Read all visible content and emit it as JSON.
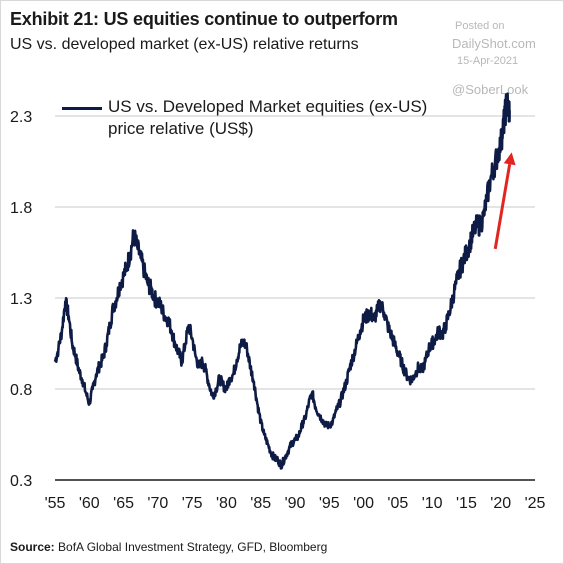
{
  "header": {
    "title": "Exhibit 21: US equities continue to outperform",
    "subtitle": "US vs. developed market (ex-US) relative returns"
  },
  "watermark": {
    "posted": "Posted on",
    "site": "DailyShot.com",
    "date": "15-Apr-2021",
    "handle": "@SoberLook"
  },
  "footer": {
    "source_label": "Source:",
    "source_text": "BofA Global Investment Strategy, GFD, Bloomberg"
  },
  "chart_data": {
    "type": "line",
    "series": [
      {
        "name": "US vs. Developed Market equities (ex-US) price relative (US$)",
        "color": "#0d1b45",
        "x": [
          1955,
          1955.5,
          1956,
          1956.5,
          1957,
          1957.5,
          1958,
          1958.5,
          1959,
          1959.5,
          1960,
          1960.5,
          1961,
          1961.5,
          1962,
          1962.5,
          1963,
          1963.5,
          1964,
          1964.5,
          1965,
          1965.5,
          1966,
          1966.5,
          1967,
          1967.5,
          1968,
          1968.5,
          1969,
          1969.5,
          1970,
          1970.5,
          1971,
          1971.5,
          1972,
          1972.5,
          1973,
          1973.5,
          1974,
          1974.5,
          1975,
          1975.5,
          1976,
          1976.5,
          1977,
          1977.5,
          1978,
          1978.5,
          1979,
          1979.5,
          1980,
          1980.5,
          1981,
          1981.5,
          1982,
          1982.5,
          1983,
          1983.5,
          1984,
          1984.5,
          1985,
          1985.5,
          1986,
          1986.5,
          1987,
          1987.5,
          1988,
          1988.5,
          1989,
          1989.5,
          1990,
          1990.5,
          1991,
          1991.5,
          1992,
          1992.5,
          1993,
          1993.5,
          1994,
          1994.5,
          1995,
          1995.5,
          1996,
          1996.5,
          1997,
          1997.5,
          1998,
          1998.5,
          1999,
          1999.5,
          2000,
          2000.5,
          2001,
          2001.5,
          2002,
          2002.5,
          2003,
          2003.5,
          2004,
          2004.5,
          2005,
          2005.5,
          2006,
          2006.5,
          2007,
          2007.5,
          2008,
          2008.5,
          2009,
          2009.5,
          2010,
          2010.5,
          2011,
          2011.5,
          2012,
          2012.5,
          2013,
          2013.5,
          2014,
          2014.5,
          2015,
          2015.5,
          2016,
          2016.5,
          2017,
          2017.5,
          2018,
          2018.5,
          2019,
          2019.5,
          2020,
          2020.3,
          2020.6,
          2020.9,
          2021.1,
          2021.3
        ],
        "values": [
          0.95,
          1.02,
          1.12,
          1.28,
          1.2,
          1.05,
          0.98,
          0.9,
          0.85,
          0.78,
          0.72,
          0.8,
          0.88,
          0.93,
          0.97,
          1.05,
          1.15,
          1.25,
          1.3,
          1.38,
          1.42,
          1.48,
          1.55,
          1.65,
          1.58,
          1.52,
          1.45,
          1.38,
          1.35,
          1.3,
          1.28,
          1.25,
          1.2,
          1.18,
          1.12,
          1.05,
          1.0,
          0.95,
          1.05,
          1.15,
          1.08,
          0.98,
          0.92,
          0.95,
          0.9,
          0.82,
          0.76,
          0.8,
          0.86,
          0.82,
          0.8,
          0.86,
          0.88,
          0.96,
          1.03,
          1.06,
          1.02,
          0.92,
          0.84,
          0.72,
          0.62,
          0.55,
          0.5,
          0.45,
          0.42,
          0.41,
          0.38,
          0.42,
          0.46,
          0.5,
          0.52,
          0.54,
          0.6,
          0.64,
          0.72,
          0.78,
          0.7,
          0.66,
          0.63,
          0.6,
          0.6,
          0.62,
          0.68,
          0.72,
          0.78,
          0.84,
          0.92,
          0.98,
          1.05,
          1.12,
          1.18,
          1.2,
          1.22,
          1.18,
          1.23,
          1.27,
          1.22,
          1.15,
          1.1,
          1.05,
          1.0,
          0.95,
          0.9,
          0.86,
          0.85,
          0.88,
          0.92,
          0.9,
          0.95,
          1.02,
          1.05,
          1.08,
          1.12,
          1.1,
          1.15,
          1.22,
          1.3,
          1.38,
          1.45,
          1.5,
          1.55,
          1.6,
          1.66,
          1.7,
          1.7,
          1.75,
          1.85,
          1.95,
          2.02,
          2.08,
          2.15,
          2.22,
          2.3,
          2.38,
          2.34,
          2.33
        ]
      }
    ],
    "xlim": [
      1955,
      2025
    ],
    "ylim": [
      0.3,
      2.3
    ],
    "x_ticks": [
      "'55",
      "'60",
      "'65",
      "'70",
      "'75",
      "'80",
      "'85",
      "'90",
      "'95",
      "'00",
      "'05",
      "'10",
      "'15",
      "'20",
      "'25"
    ],
    "x_tick_values": [
      1955,
      1960,
      1965,
      1970,
      1975,
      1980,
      1985,
      1990,
      1995,
      2000,
      2005,
      2010,
      2015,
      2020,
      2025
    ],
    "y_ticks": [
      "0.3",
      "0.8",
      "1.3",
      "1.8",
      "2.3"
    ],
    "y_tick_values": [
      0.3,
      0.8,
      1.3,
      1.8,
      2.3
    ],
    "grid": "horizontal",
    "legend": "top-left",
    "annotation": {
      "type": "arrow",
      "color": "#e32521",
      "from": [
        2019.2,
        1.57
      ],
      "to": [
        2021.6,
        2.1
      ]
    }
  }
}
